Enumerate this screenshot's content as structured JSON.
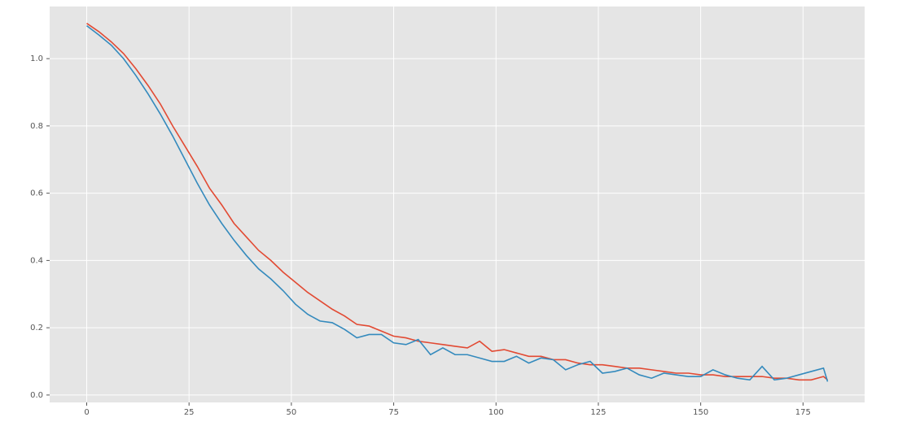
{
  "chart_data": {
    "type": "line",
    "x": [
      0,
      3,
      6,
      9,
      12,
      15,
      18,
      21,
      24,
      27,
      30,
      33,
      36,
      39,
      42,
      45,
      48,
      51,
      54,
      57,
      60,
      63,
      66,
      69,
      72,
      75,
      78,
      81,
      84,
      87,
      90,
      93,
      96,
      99,
      102,
      105,
      108,
      111,
      114,
      117,
      120,
      123,
      126,
      129,
      132,
      135,
      138,
      141,
      144,
      147,
      150,
      153,
      156,
      159,
      162,
      165,
      168,
      171,
      174,
      177,
      180,
      181
    ],
    "series": [
      {
        "color": "#e24a33",
        "values": [
          1.105,
          1.08,
          1.05,
          1.015,
          0.97,
          0.92,
          0.865,
          0.8,
          0.74,
          0.68,
          0.615,
          0.565,
          0.51,
          0.47,
          0.43,
          0.4,
          0.365,
          0.335,
          0.305,
          0.28,
          0.255,
          0.235,
          0.21,
          0.205,
          0.19,
          0.175,
          0.17,
          0.16,
          0.155,
          0.15,
          0.145,
          0.14,
          0.16,
          0.13,
          0.135,
          0.125,
          0.115,
          0.115,
          0.105,
          0.105,
          0.095,
          0.09,
          0.09,
          0.085,
          0.08,
          0.08,
          0.075,
          0.07,
          0.065,
          0.065,
          0.06,
          0.06,
          0.055,
          0.055,
          0.055,
          0.055,
          0.05,
          0.05,
          0.045,
          0.045,
          0.055,
          0.045
        ]
      },
      {
        "color": "#348abd",
        "values": [
          1.098,
          1.07,
          1.04,
          1.0,
          0.95,
          0.895,
          0.835,
          0.77,
          0.7,
          0.63,
          0.565,
          0.51,
          0.46,
          0.415,
          0.375,
          0.345,
          0.31,
          0.27,
          0.24,
          0.22,
          0.215,
          0.195,
          0.17,
          0.18,
          0.18,
          0.155,
          0.15,
          0.165,
          0.12,
          0.14,
          0.12,
          0.12,
          0.11,
          0.1,
          0.1,
          0.115,
          0.095,
          0.11,
          0.105,
          0.075,
          0.09,
          0.1,
          0.065,
          0.07,
          0.08,
          0.06,
          0.05,
          0.065,
          0.06,
          0.055,
          0.055,
          0.075,
          0.06,
          0.05,
          0.045,
          0.085,
          0.045,
          0.05,
          0.06,
          0.07,
          0.08,
          0.04
        ]
      }
    ],
    "xlim": [
      -9.05,
      190.05
    ],
    "xticks": [
      0,
      25,
      50,
      75,
      100,
      125,
      150,
      175
    ],
    "ylim": [
      -0.022,
      1.155
    ],
    "yticks": [
      {
        "value": 0,
        "label": "0.0"
      },
      0.2,
      0.4,
      0.6,
      0.8,
      {
        "value": 1,
        "label": "1.0"
      }
    ],
    "grid": true
  }
}
